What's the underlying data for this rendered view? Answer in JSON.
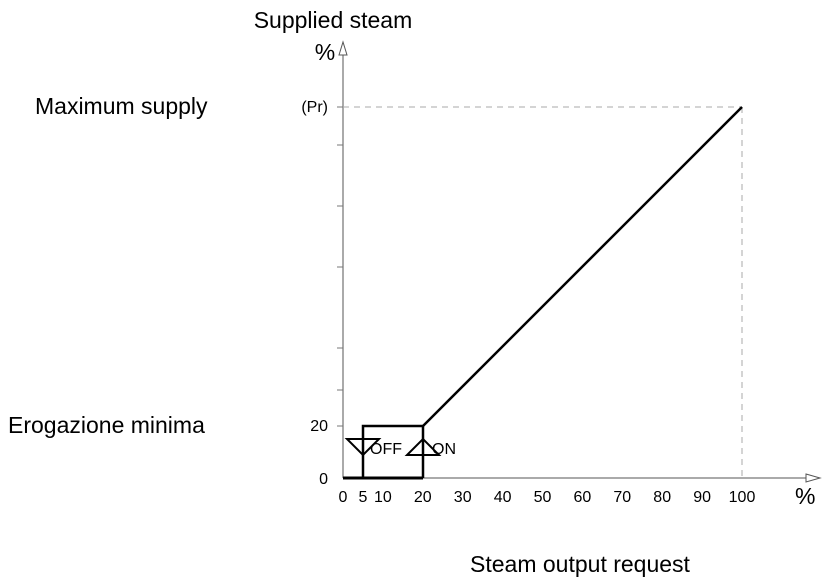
{
  "title": "Supplied steam",
  "y_axis": {
    "unit": "%",
    "tick_labels": [
      "0",
      "20",
      "(Pr)"
    ]
  },
  "x_axis": {
    "label": "Steam output request",
    "unit": "%",
    "ticks": [
      0,
      5,
      10,
      20,
      30,
      40,
      50,
      60,
      70,
      80,
      90,
      100
    ]
  },
  "annotations": {
    "max": "Maximum supply",
    "min": "Erogazione minima",
    "off": "OFF",
    "on": "ON"
  }
}
